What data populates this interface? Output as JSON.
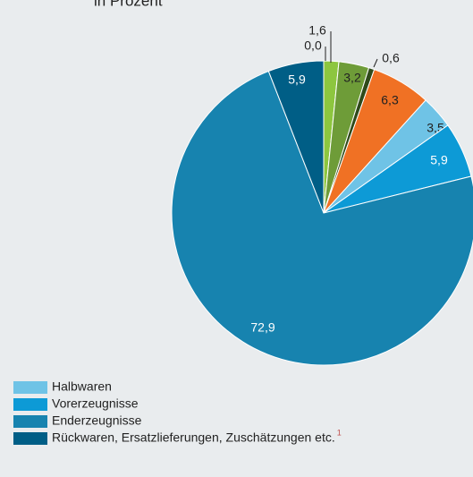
{
  "chart_data": {
    "type": "pie",
    "title": "in Prozent",
    "categories": [
      null,
      null,
      null,
      null,
      null,
      "Halbwaren",
      "Vorerzeugnisse",
      "Enderzeugnisse",
      "Rückwaren, Ersatzlieferungen, Zuschätzungen etc."
    ],
    "footnote": "1",
    "values": [
      1.6,
      0.0,
      3.2,
      0.6,
      6.3,
      3.5,
      5.9,
      72.9,
      5.9
    ],
    "value_labels": [
      "1,6",
      "0,0",
      "3,2",
      "0,6",
      "6,3",
      "3,5",
      "5,9",
      "72,9",
      "5,9"
    ],
    "colors": [
      "#8dc63f",
      "#4d7a2a",
      "#6e9c38",
      "#2f4a1a",
      "#f07124",
      "#6fc3e6",
      "#0d9ad6",
      "#1783af",
      "#005e86"
    ],
    "legend": "bottom-left"
  }
}
